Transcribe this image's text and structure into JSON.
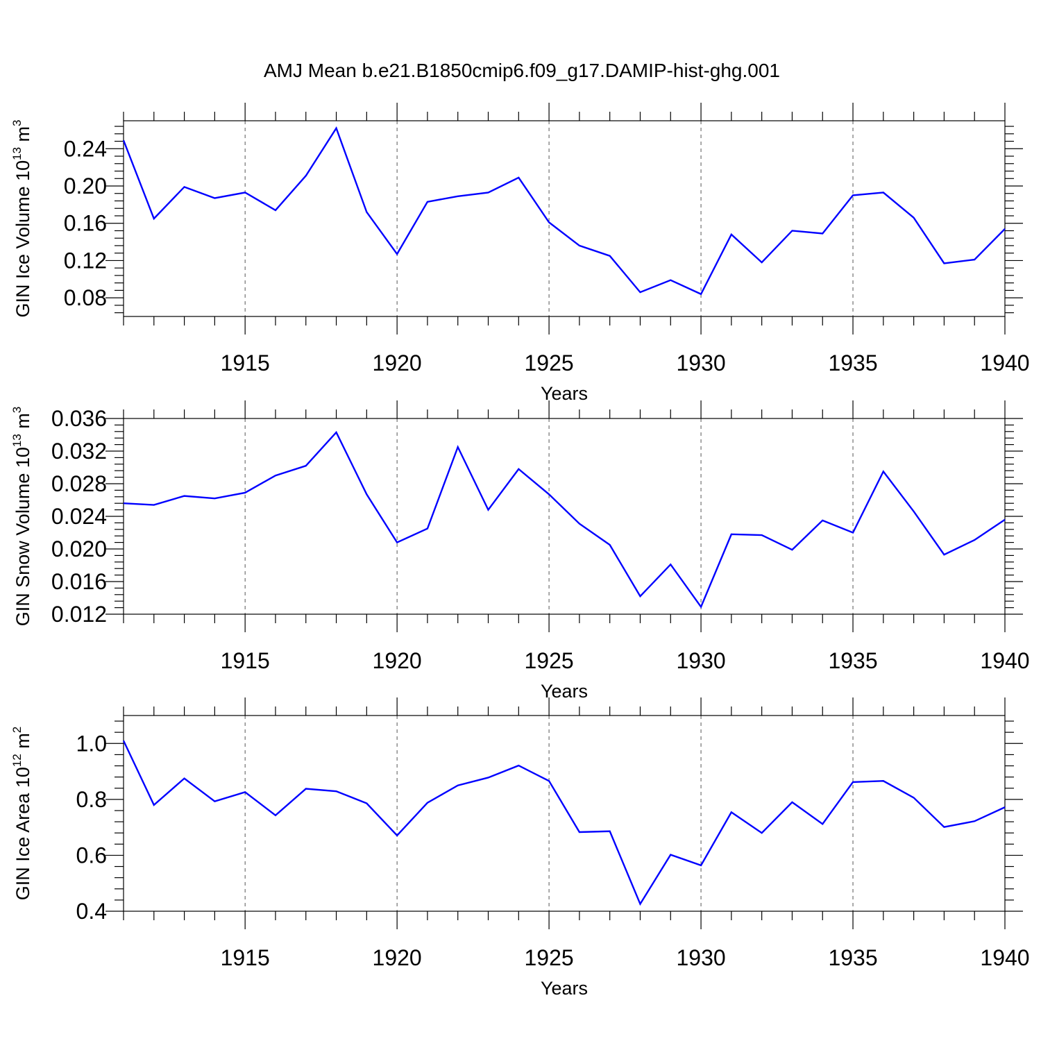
{
  "title": "AMJ Mean b.e21.B1850cmip6.f09_g17.DAMIP-hist-ghg.001",
  "colors": {
    "line": "#0000ff"
  },
  "chart_data": [
    {
      "type": "line",
      "xlabel": "Years",
      "ylabel": {
        "text": "GIN Ice Volume 10",
        "sup": "13",
        "unit": " m",
        "unit_sup": "3"
      },
      "xlim": [
        1911,
        1940
      ],
      "ylim": [
        0.06,
        0.27
      ],
      "xticks": [
        1915,
        1920,
        1925,
        1930,
        1935,
        1940
      ],
      "xtick_labels": [
        "1915",
        "1920",
        "1925",
        "1930",
        "1935",
        "1940"
      ],
      "yticks": [
        0.08,
        0.12,
        0.16,
        0.2,
        0.24
      ],
      "ytick_labels": [
        "0.08",
        "0.12",
        "0.16",
        "0.20",
        "0.24"
      ],
      "grid": "x-dashed",
      "x": [
        1911,
        1912,
        1913,
        1914,
        1915,
        1916,
        1917,
        1918,
        1919,
        1920,
        1921,
        1922,
        1923,
        1924,
        1925,
        1926,
        1927,
        1928,
        1929,
        1930,
        1931,
        1932,
        1933,
        1934,
        1935,
        1936,
        1937,
        1938,
        1939,
        1940
      ],
      "series": [
        {
          "values": [
            0.249,
            0.165,
            0.199,
            0.187,
            0.193,
            0.174,
            0.211,
            0.262,
            0.172,
            0.127,
            0.183,
            0.189,
            0.193,
            0.209,
            0.161,
            0.136,
            0.125,
            0.086,
            0.099,
            0.084,
            0.148,
            0.118,
            0.152,
            0.149,
            0.19,
            0.193,
            0.166,
            0.117,
            0.121,
            0.154
          ]
        }
      ]
    },
    {
      "type": "line",
      "xlabel": "Years",
      "ylabel": {
        "text": "GIN Snow Volume 10",
        "sup": "13",
        "unit": " m",
        "unit_sup": "3"
      },
      "xlim": [
        1911,
        1940
      ],
      "ylim": [
        0.012,
        0.036
      ],
      "xticks": [
        1915,
        1920,
        1925,
        1930,
        1935,
        1940
      ],
      "xtick_labels": [
        "1915",
        "1920",
        "1925",
        "1930",
        "1935",
        "1940"
      ],
      "yticks": [
        0.012,
        0.016,
        0.02,
        0.024,
        0.028,
        0.032,
        0.036
      ],
      "ytick_labels": [
        "0.012",
        "0.016",
        "0.020",
        "0.024",
        "0.028",
        "0.032",
        "0.036"
      ],
      "grid": "x-dashed",
      "x": [
        1911,
        1912,
        1913,
        1914,
        1915,
        1916,
        1917,
        1918,
        1919,
        1920,
        1921,
        1922,
        1923,
        1924,
        1925,
        1926,
        1927,
        1928,
        1929,
        1930,
        1931,
        1932,
        1933,
        1934,
        1935,
        1936,
        1937,
        1938,
        1939,
        1940
      ],
      "series": [
        {
          "values": [
            0.0256,
            0.0254,
            0.0265,
            0.0262,
            0.0269,
            0.029,
            0.0302,
            0.0343,
            0.0267,
            0.0208,
            0.0225,
            0.0325,
            0.0248,
            0.0298,
            0.0267,
            0.0231,
            0.0205,
            0.0142,
            0.0181,
            0.0129,
            0.0218,
            0.0217,
            0.0199,
            0.0235,
            0.022,
            0.0295,
            0.0246,
            0.0193,
            0.0211,
            0.0236
          ]
        }
      ]
    },
    {
      "type": "line",
      "xlabel": "Years",
      "ylabel": {
        "text": "GIN Ice Area 10",
        "sup": "12",
        "unit": " m",
        "unit_sup": "2"
      },
      "xlim": [
        1911,
        1940
      ],
      "ylim": [
        0.4,
        1.1
      ],
      "xticks": [
        1915,
        1920,
        1925,
        1930,
        1935,
        1940
      ],
      "xtick_labels": [
        "1915",
        "1920",
        "1925",
        "1930",
        "1935",
        "1940"
      ],
      "yticks": [
        0.4,
        0.6,
        0.8,
        1.0
      ],
      "ytick_labels": [
        "0.4",
        "0.6",
        "0.8",
        "1.0"
      ],
      "grid": "x-dashed",
      "x": [
        1911,
        1912,
        1913,
        1914,
        1915,
        1916,
        1917,
        1918,
        1919,
        1920,
        1921,
        1922,
        1923,
        1924,
        1925,
        1926,
        1927,
        1928,
        1929,
        1930,
        1931,
        1932,
        1933,
        1934,
        1935,
        1936,
        1937,
        1938,
        1939,
        1940
      ],
      "series": [
        {
          "values": [
            1.01,
            0.78,
            0.875,
            0.793,
            0.826,
            0.743,
            0.838,
            0.829,
            0.786,
            0.671,
            0.788,
            0.85,
            0.878,
            0.921,
            0.866,
            0.683,
            0.686,
            0.426,
            0.602,
            0.564,
            0.754,
            0.68,
            0.79,
            0.712,
            0.862,
            0.866,
            0.806,
            0.701,
            0.722,
            0.772
          ]
        }
      ]
    }
  ]
}
